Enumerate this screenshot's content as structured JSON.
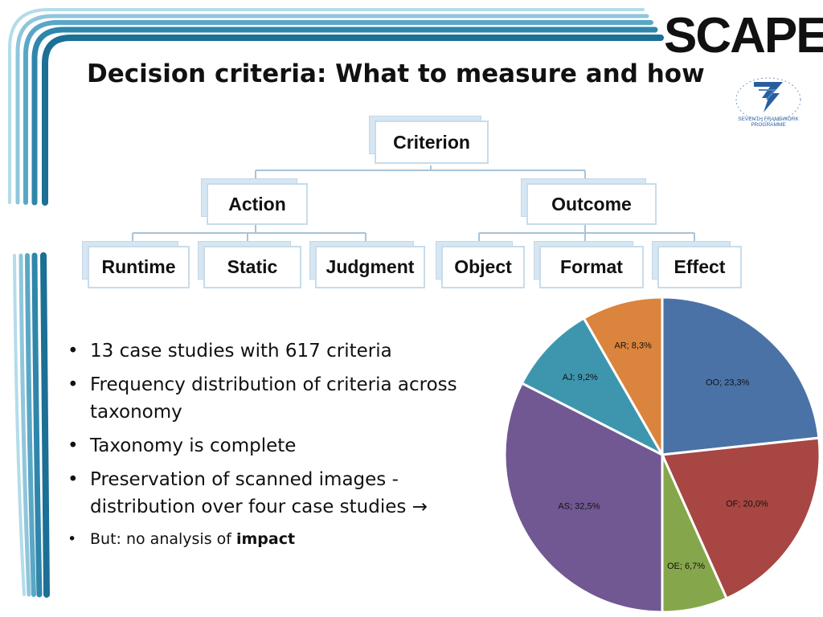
{
  "header": {
    "title": "Decision criteria: What to measure and how",
    "logo_text": "SCAPE",
    "fp7_line1": "SEVENTH FRAMEWORK",
    "fp7_line2": "PROGRAMME"
  },
  "taxonomy": {
    "root": "Criterion",
    "branches": [
      {
        "label": "Action",
        "children": [
          "Runtime",
          "Static",
          "Judgment"
        ]
      },
      {
        "label": "Outcome",
        "children": [
          "Object",
          "Format",
          "Effect"
        ]
      }
    ]
  },
  "bullets": [
    "13 case studies with 617 criteria",
    "Frequency distribution of criteria across taxonomy",
    "Taxonomy is complete",
    "Preservation of scanned images  - distribution over four case studies"
  ],
  "last_bullet": {
    "prefix": "But: no analysis of ",
    "bold": "impact"
  },
  "arrow_symbol": "→",
  "colors": {
    "swoosh": [
      "#b4dce9",
      "#8fc6dc",
      "#5aa7c5",
      "#2f86ab",
      "#1c6f95"
    ],
    "node_border": "#c7dcec",
    "node_back": "#d6e6f2",
    "connector": "#a9c4d9"
  },
  "chart_data": {
    "type": "pie",
    "slices": [
      {
        "label": "OO; 23,3%",
        "name": "OO",
        "value": 23.3,
        "color": "#4a72a7"
      },
      {
        "label": "OF; 20,0%",
        "name": "OF",
        "value": 20.0,
        "color": "#a74642"
      },
      {
        "label": "OE; 6,7%",
        "name": "OE",
        "value": 6.7,
        "color": "#86a64b"
      },
      {
        "label": "AS; 32,5%",
        "name": "AS",
        "value": 32.5,
        "color": "#715892"
      },
      {
        "label": "AJ; 9,2%",
        "name": "AJ",
        "value": 9.2,
        "color": "#3e96ae"
      },
      {
        "label": "AR; 8,3%",
        "name": "AR",
        "value": 8.3,
        "color": "#db843d"
      }
    ],
    "start_angle_deg": 0,
    "direction": "clockwise"
  }
}
